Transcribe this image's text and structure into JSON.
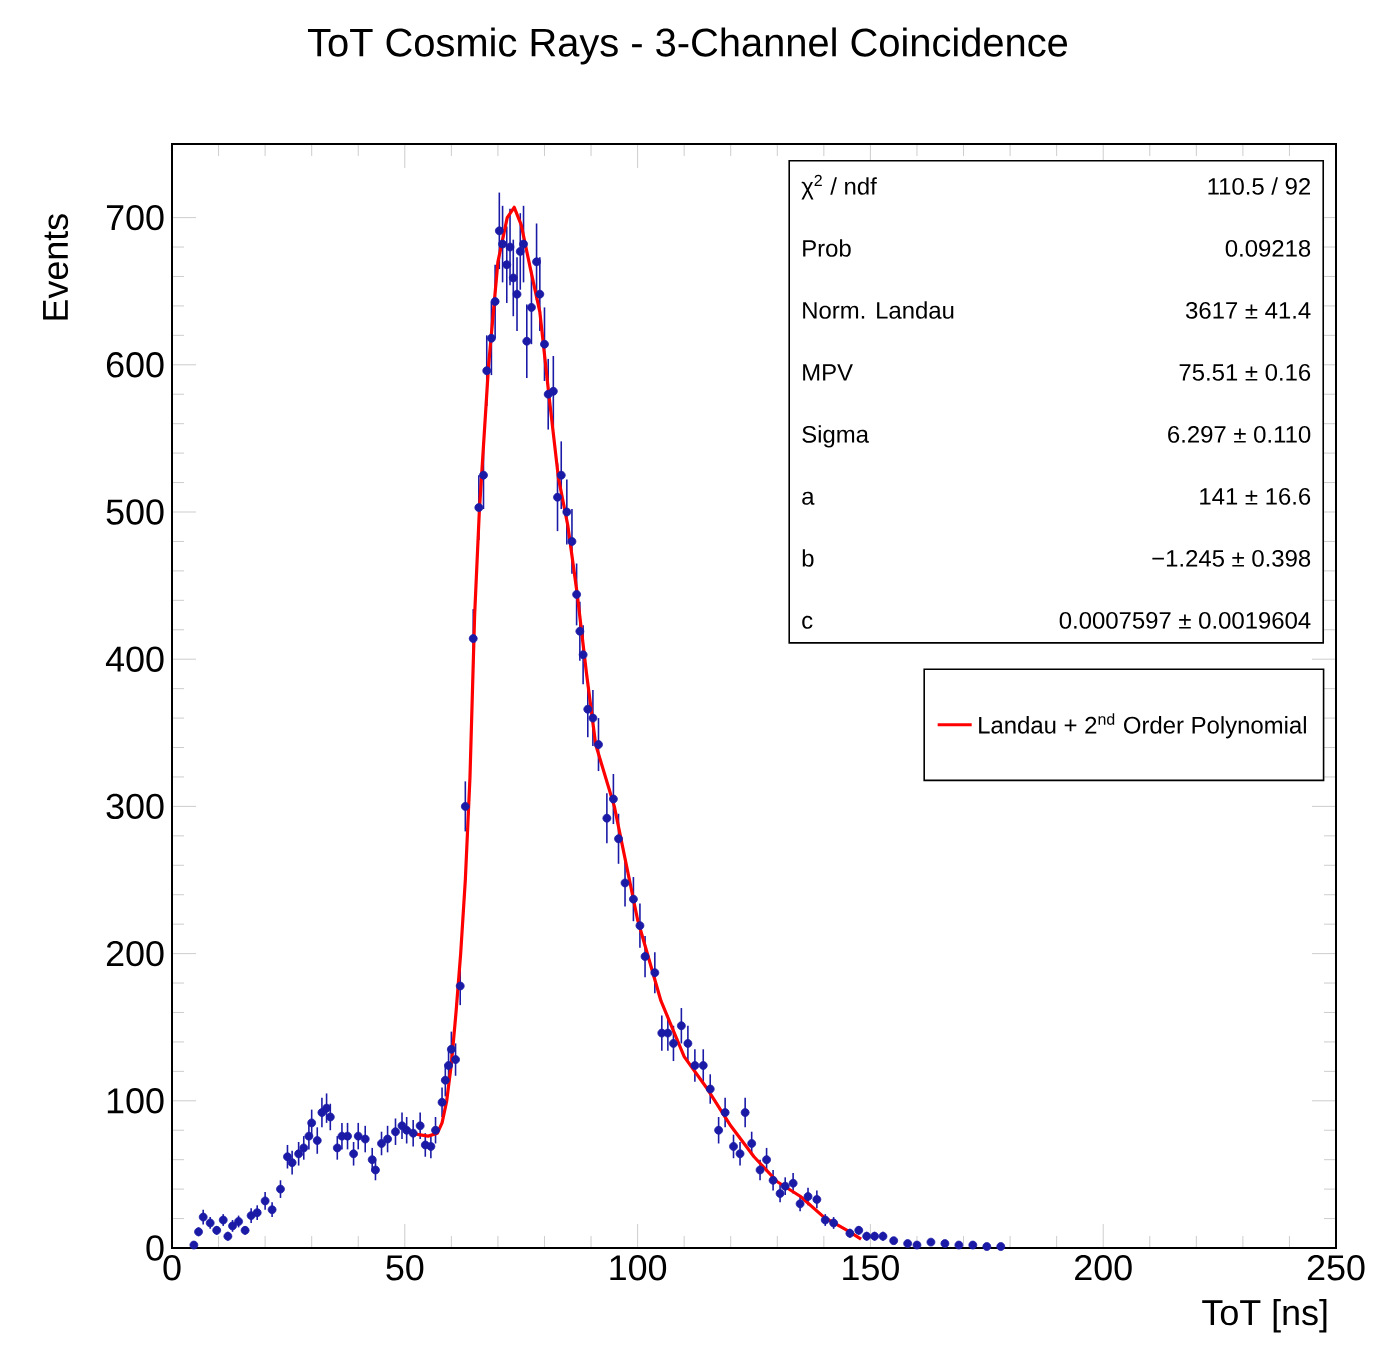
{
  "chart_data": {
    "type": "scatter",
    "title": "ToT Cosmic Rays - 3-Channel Coincidence",
    "xlabel": "ToT [ns]",
    "ylabel": "Events",
    "xlim": [
      0,
      250
    ],
    "xticks": [
      0,
      50,
      100,
      150,
      200,
      250
    ],
    "ylim": [
      0,
      750
    ],
    "yticks": [
      0,
      100,
      200,
      300,
      400,
      500,
      600,
      700
    ],
    "legend": "right",
    "annotations": [
      "χ$^{2}$ / ndf",
      "110.5 / 92",
      "Prob",
      "0.09218",
      "Norm. Landau",
      "3617 ± 41.4",
      "MPV",
      "75.51 ± 0.16",
      "Sigma",
      "6.297 ± 0.110",
      "a",
      "141 ± 16.6",
      "b",
      "−1.245 ± 0.398",
      "c",
      "0.0007597 ± 0.0019604"
    ],
    "series": [
      {
        "color": "#1a1aa6",
        "x": [
          4.7,
          5.7,
          6.7,
          8.2,
          9.6,
          11,
          12,
          13,
          14.3,
          15.7,
          17,
          18.3,
          20,
          21.5,
          23.3,
          24.8,
          25.8,
          27.2,
          28.3,
          29.4,
          30,
          31.2,
          32.2,
          33.2,
          34,
          35.5,
          36.5,
          37.7,
          39,
          40,
          41.5,
          43,
          43.7,
          45,
          46.3,
          48,
          49.4,
          50.4,
          51.8,
          53.3,
          54.4,
          55.6,
          56.6,
          58,
          58.7,
          59.4,
          60,
          60.9,
          61.9,
          63,
          64.7,
          65.9,
          66.9,
          67.6,
          68.6,
          69.4,
          70.3,
          71,
          71.9,
          72.6,
          73.3,
          74.1,
          74.8,
          75.5,
          76.2,
          77.2,
          78.3,
          79,
          80,
          80.8,
          81.9,
          82.8,
          83.6,
          84.8,
          85.9,
          86.9,
          87.6,
          88.3,
          89.3,
          90.4,
          91.6,
          93.4,
          94.8,
          95.9,
          97.3,
          99.1,
          100.5,
          101.6,
          103.7,
          105.2,
          106.5,
          107.7,
          109.4,
          110.8,
          112.3,
          114.1,
          115.6,
          117.4,
          118.8,
          120.6,
          122,
          123.1,
          124.5,
          126.3,
          127.7,
          129.1,
          130.6,
          131.7,
          133.4,
          134.9,
          136.6,
          138.5,
          140.3,
          142.1,
          145.6,
          147.5,
          149.2,
          150.9,
          152.7,
          155,
          158,
          160,
          163,
          166,
          169,
          172,
          175,
          178
        ],
        "values": [
          2,
          11,
          21,
          17,
          12,
          19,
          8,
          15,
          18,
          12,
          22,
          24,
          32,
          26,
          40,
          62,
          58,
          64,
          68,
          76,
          85,
          73,
          92,
          95,
          89,
          68,
          76,
          76,
          64,
          76,
          74,
          60,
          53,
          71,
          74,
          79,
          83,
          80,
          78,
          83,
          70,
          69,
          80,
          99,
          114,
          124,
          135,
          128,
          178,
          300,
          414,
          503,
          525,
          596,
          618,
          643,
          691,
          682,
          668,
          680,
          659,
          648,
          677,
          682,
          616,
          639,
          670,
          648,
          614,
          580,
          582,
          510,
          525,
          500,
          480,
          444,
          419,
          403,
          366,
          360,
          342,
          292,
          305,
          278,
          248,
          237,
          219,
          198,
          187,
          146,
          146,
          139,
          151,
          139,
          124,
          124,
          108,
          80,
          92,
          69,
          64,
          92,
          71,
          53,
          60,
          46,
          37,
          42,
          44,
          30,
          35,
          33,
          19,
          17,
          10,
          12,
          8,
          8,
          8,
          5,
          3,
          2,
          4,
          3,
          2,
          2,
          1,
          1
        ],
        "errors": [
          1,
          3,
          5,
          4,
          3,
          4,
          3,
          4,
          4,
          3,
          5,
          5,
          6,
          5,
          6,
          8,
          8,
          8,
          8,
          9,
          9,
          9,
          10,
          10,
          9,
          8,
          9,
          9,
          8,
          9,
          9,
          8,
          7,
          8,
          9,
          9,
          9,
          9,
          9,
          9,
          8,
          8,
          9,
          10,
          11,
          11,
          12,
          11,
          13,
          17,
          20,
          22,
          23,
          24,
          25,
          25,
          26,
          26,
          26,
          26,
          26,
          25,
          26,
          26,
          25,
          25,
          26,
          25,
          25,
          24,
          24,
          23,
          23,
          22,
          22,
          21,
          20,
          20,
          19,
          19,
          18,
          17,
          17,
          17,
          16,
          15,
          15,
          14,
          14,
          12,
          12,
          12,
          12,
          12,
          11,
          11,
          10,
          9,
          10,
          8,
          8,
          10,
          8,
          7,
          8,
          7,
          6,
          6,
          7,
          5,
          6,
          6,
          4,
          4,
          3,
          3,
          3,
          3,
          3,
          2,
          2,
          1,
          2,
          2,
          1,
          1,
          1,
          1
        ],
        "xerrors": [
          0.5,
          0.5,
          0.5,
          0.5,
          0.5,
          0.5,
          0.5,
          0.5,
          0.5,
          0.5,
          0.5,
          0.5,
          0.5,
          0.5,
          0.5,
          0.5,
          0.5,
          0.5,
          0.5,
          0.5,
          0.5,
          0.5,
          0.5,
          0.5,
          0.5,
          0.5,
          0.5,
          0.5,
          0.5,
          0.5,
          0.5,
          0.5,
          0.5,
          0.5,
          0.5,
          0.5,
          0.5,
          0.5,
          0.5,
          0.5,
          0.5,
          0.5,
          0.5,
          0.5,
          0.5,
          0.5,
          0.5,
          0.5,
          0.5,
          0.5,
          0.5,
          0.5,
          0.5,
          0.5,
          0.5,
          0.5,
          0.5,
          0.5,
          0.5,
          0.5,
          0.5,
          0.5,
          0.5,
          0.5,
          0.5,
          0.5,
          0.5,
          0.5,
          0.5,
          0.5,
          0.5,
          0.5,
          0.5,
          0.5,
          0.5,
          0.5,
          0.5,
          0.5,
          0.5,
          0.5,
          0.5,
          0.5,
          0.5,
          0.5,
          0.5,
          0.5,
          0.5,
          0.5,
          0.5,
          0.5,
          0.5,
          0.5,
          0.5,
          0.5,
          0.5,
          0.5,
          0.5,
          0.5,
          0.5,
          0.5,
          0.5,
          0.5,
          0.5,
          0.5,
          0.5,
          0.5,
          0.5,
          0.5,
          0.5,
          0.5,
          0.5,
          0.5,
          0.5,
          0.5,
          0.5,
          0.5,
          0.5,
          0.5,
          0.5,
          0.5,
          0.5,
          0.5,
          0.5,
          0.5,
          0.5,
          0.5,
          0.5,
          0.5
        ]
      },
      {
        "type": "line",
        "name": "Landau + 2$^{nd}$ Order Polynomial",
        "color": "#ff0000",
        "x": [
          50,
          53,
          55,
          57,
          58,
          59,
          60,
          61,
          62,
          63,
          64,
          65,
          66,
          68,
          70,
          72,
          73.5,
          75,
          77,
          79,
          81,
          83,
          85,
          87,
          89,
          91,
          95,
          100,
          105,
          110,
          115,
          120,
          125,
          130,
          135,
          140,
          145,
          148
        ],
        "values": [
          80,
          77,
          76,
          78,
          85,
          100,
          125,
          160,
          200,
          250,
          320,
          430,
          500,
          600,
          670,
          700,
          707,
          695,
          665,
          636,
          578,
          523,
          491,
          445,
          391,
          342,
          300,
          223,
          168,
          130,
          108,
          83,
          62,
          45,
          35,
          21,
          12,
          6
        ]
      }
    ]
  }
}
